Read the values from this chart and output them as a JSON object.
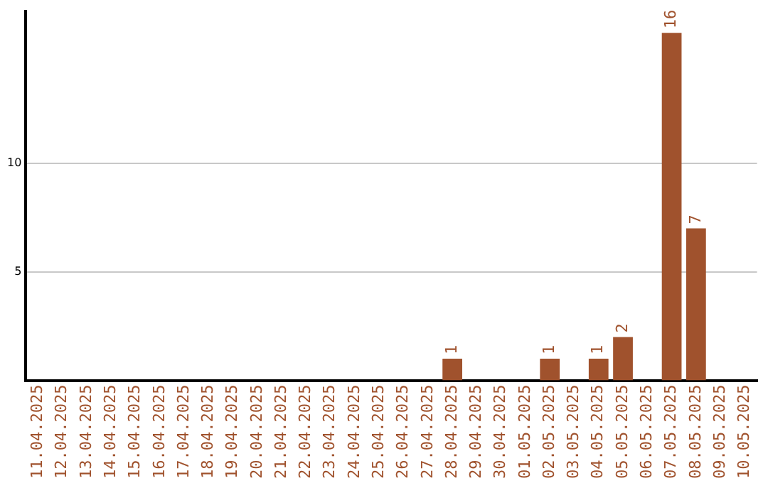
{
  "chart_data": {
    "type": "bar",
    "categories": [
      "11.04.2025",
      "12.04.2025",
      "13.04.2025",
      "14.04.2025",
      "15.04.2025",
      "16.04.2025",
      "17.04.2025",
      "18.04.2025",
      "19.04.2025",
      "20.04.2025",
      "21.04.2025",
      "22.04.2025",
      "23.04.2025",
      "24.04.2025",
      "25.04.2025",
      "26.04.2025",
      "27.04.2025",
      "28.04.2025",
      "29.04.2025",
      "30.04.2025",
      "01.05.2025",
      "02.05.2025",
      "03.05.2025",
      "04.05.2025",
      "05.05.2025",
      "06.05.2025",
      "07.05.2025",
      "08.05.2025",
      "09.05.2025",
      "10.05.2025"
    ],
    "values": [
      0,
      0,
      0,
      0,
      0,
      0,
      0,
      0,
      0,
      0,
      0,
      0,
      0,
      0,
      0,
      0,
      0,
      1,
      0,
      0,
      0,
      1,
      0,
      1,
      2,
      0,
      16,
      7,
      0,
      0
    ],
    "value_labels": [
      null,
      null,
      null,
      null,
      null,
      null,
      null,
      null,
      null,
      null,
      null,
      null,
      null,
      null,
      null,
      null,
      null,
      "1",
      null,
      null,
      null,
      "1",
      null,
      "1",
      "2",
      null,
      "16",
      "7",
      null,
      null
    ],
    "color": "#a0522d",
    "ylim": [
      0,
      17
    ],
    "yticks": [
      5,
      10
    ],
    "grid": "y"
  }
}
